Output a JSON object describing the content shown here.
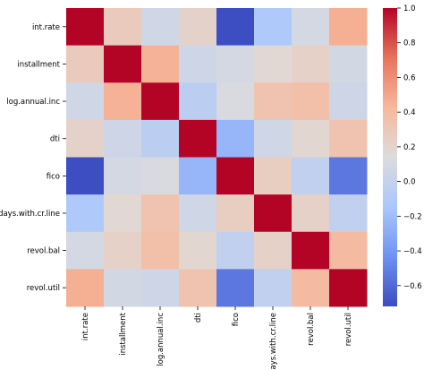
{
  "chart_data": {
    "type": "heatmap",
    "title": "",
    "xlabel": "",
    "ylabel": "",
    "labels": [
      "int.rate",
      "installment",
      "log.annual.inc",
      "dti",
      "fico",
      "days.with.cr.line",
      "revol.bal",
      "revol.util"
    ],
    "matrix": [
      [
        1.0,
        0.28,
        0.06,
        0.22,
        -0.71,
        -0.12,
        0.09,
        0.46
      ],
      [
        0.28,
        1.0,
        0.45,
        0.05,
        0.09,
        0.18,
        0.23,
        0.08
      ],
      [
        0.06,
        0.45,
        1.0,
        -0.05,
        0.11,
        0.34,
        0.37,
        0.05
      ],
      [
        0.22,
        0.05,
        -0.05,
        1.0,
        -0.24,
        0.06,
        0.19,
        0.34
      ],
      [
        -0.71,
        0.09,
        0.11,
        -0.24,
        1.0,
        0.26,
        -0.02,
        -0.54
      ],
      [
        -0.12,
        0.18,
        0.34,
        0.06,
        0.26,
        1.0,
        0.23,
        -0.02
      ],
      [
        0.09,
        0.23,
        0.37,
        0.19,
        -0.02,
        0.23,
        1.0,
        0.4
      ],
      [
        0.46,
        0.08,
        0.05,
        0.34,
        -0.54,
        -0.02,
        0.4,
        1.0
      ]
    ],
    "colorbar": {
      "vmin": -0.72,
      "vmax": 1.0,
      "ticks": [
        -0.6,
        -0.4,
        -0.2,
        0.0,
        0.2,
        0.4,
        0.6,
        0.8,
        1.0
      ],
      "tick_labels": [
        "−0.6",
        "−0.4",
        "−0.2",
        "0.0",
        "0.2",
        "0.4",
        "0.6",
        "0.8",
        "1.0"
      ],
      "colormap": "coolwarm",
      "colormap_stops": [
        "#3b4cc0",
        "#6f92f3",
        "#aac7fd",
        "#dddcdc",
        "#f7b89c",
        "#e7745b",
        "#b40426"
      ]
    },
    "grid": false
  }
}
